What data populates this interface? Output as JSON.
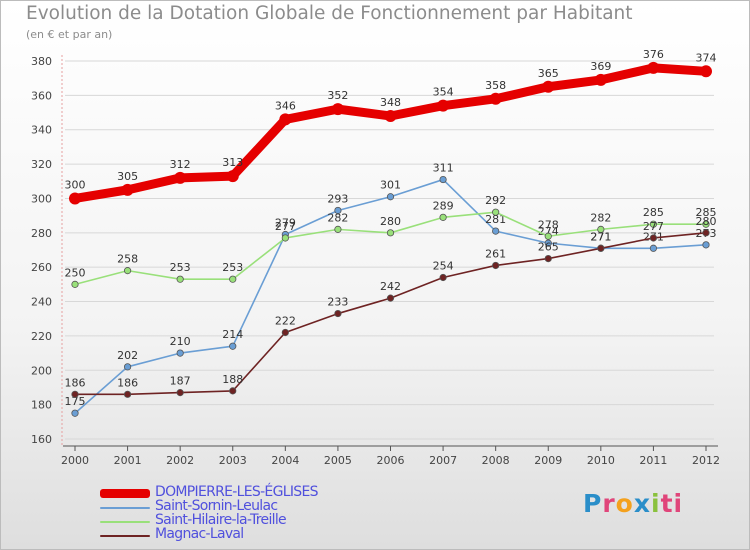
{
  "chart_data": {
    "type": "line",
    "title": "Evolution de la Dotation Globale de Fonctionnement par Habitant",
    "subtitle": "(en € et par an)",
    "xlabel": "",
    "ylabel": "",
    "categories": [
      "2000",
      "2001",
      "2002",
      "2003",
      "2004",
      "2005",
      "2006",
      "2007",
      "2008",
      "2009",
      "2010",
      "2011",
      "2012"
    ],
    "ylim": [
      160,
      380
    ],
    "yticks": [
      160,
      180,
      200,
      220,
      240,
      260,
      280,
      300,
      320,
      340,
      360,
      380
    ],
    "grid": true,
    "legend_position": "bottom-left",
    "series": [
      {
        "name": "DOMPIERRE-LES-ÉGLISES",
        "color": "#e50000",
        "thick": true,
        "values": [
          300,
          305,
          312,
          313,
          346,
          352,
          348,
          354,
          358,
          365,
          369,
          376,
          374
        ]
      },
      {
        "name": "Saint-Sornin-Leulac",
        "color": "#6a9ed4",
        "thick": false,
        "values": [
          175,
          202,
          210,
          214,
          279,
          293,
          301,
          311,
          281,
          274,
          271,
          271,
          273
        ]
      },
      {
        "name": "Saint-Hilaire-la-Treille",
        "color": "#99e07a",
        "thick": false,
        "values": [
          250,
          258,
          253,
          253,
          277,
          282,
          280,
          289,
          292,
          278,
          282,
          285,
          285
        ]
      },
      {
        "name": "Magnac-Laval",
        "color": "#6e2323",
        "thick": false,
        "values": [
          186,
          186,
          187,
          188,
          222,
          233,
          242,
          254,
          261,
          265,
          271,
          277,
          280
        ]
      }
    ]
  },
  "logo": {
    "parts": [
      "P",
      "r",
      "o",
      "x",
      "i",
      "ti"
    ]
  }
}
